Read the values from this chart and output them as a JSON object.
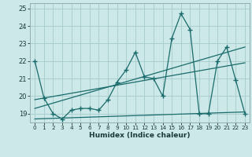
{
  "xlabel": "Humidex (Indice chaleur)",
  "bg_color": "#cce8e8",
  "grid_color": "#aacece",
  "line_color": "#1a6b6b",
  "xlim": [
    -0.5,
    23.5
  ],
  "ylim": [
    18.5,
    25.3
  ],
  "yticks": [
    19,
    20,
    21,
    22,
    23,
    24,
    25
  ],
  "xticks": [
    0,
    1,
    2,
    3,
    4,
    5,
    6,
    7,
    8,
    9,
    10,
    11,
    12,
    13,
    14,
    15,
    16,
    17,
    18,
    19,
    20,
    21,
    22,
    23
  ],
  "series_x": [
    0,
    1,
    2,
    3,
    4,
    5,
    6,
    7,
    8,
    9,
    10,
    11,
    12,
    13,
    14,
    15,
    16,
    17,
    18,
    19,
    20,
    21,
    22,
    23
  ],
  "series_y": [
    22.0,
    19.9,
    19.0,
    18.7,
    19.2,
    19.3,
    19.3,
    19.2,
    19.8,
    20.8,
    21.5,
    22.5,
    21.1,
    21.0,
    20.0,
    23.3,
    24.7,
    23.8,
    19.0,
    19.0,
    22.0,
    22.8,
    20.9,
    19.0
  ],
  "trend1_x": [
    0,
    23
  ],
  "trend1_y": [
    19.8,
    21.9
  ],
  "trend2_x": [
    0,
    23
  ],
  "trend2_y": [
    19.3,
    22.8
  ],
  "trend3_x": [
    0,
    23
  ],
  "trend3_y": [
    18.7,
    19.1
  ]
}
